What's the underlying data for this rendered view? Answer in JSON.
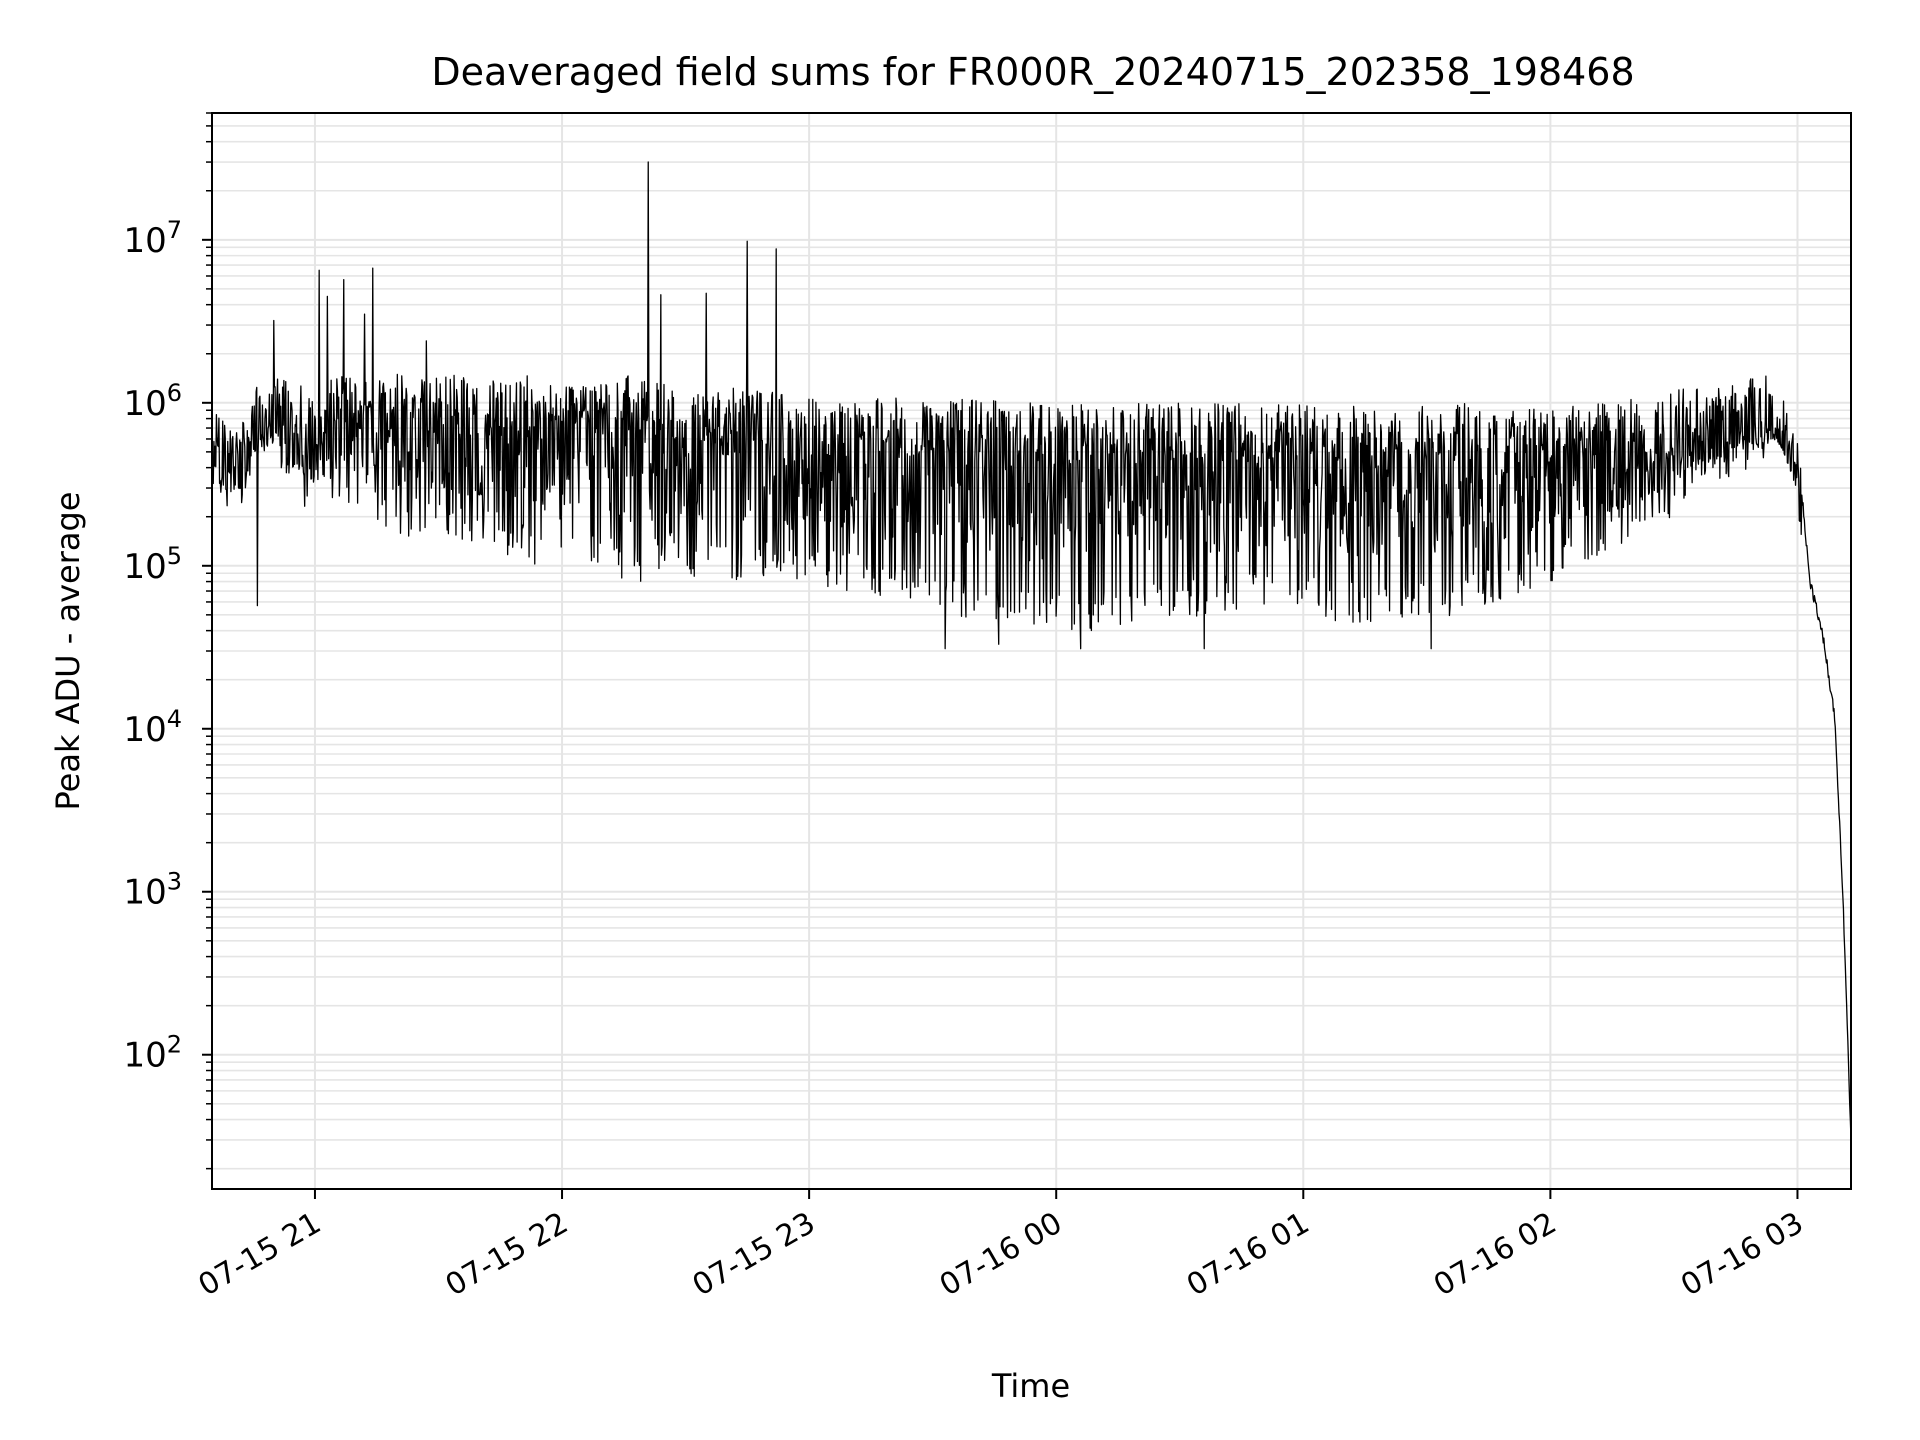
{
  "colors": {
    "background": "#ffffff",
    "series": "#000000",
    "grid": "#e5e5e5",
    "axes": "#000000"
  },
  "chart_data": {
    "type": "line",
    "title": "Deaveraged field sums for FR000R_20240715_202358_198468",
    "xlabel": "Time",
    "ylabel": "Peak ADU - average",
    "yscale": "log",
    "grid": "on (major and minor)",
    "xlim": [
      "2024-07-15 20:35",
      "2024-07-16 03:13"
    ],
    "ylim": [
      15,
      60000000
    ],
    "x_ticks": [
      {
        "t": "2024-07-15 21:00",
        "label": "07-15 21"
      },
      {
        "t": "2024-07-15 22:00",
        "label": "07-15 22"
      },
      {
        "t": "2024-07-15 23:00",
        "label": "07-15 23"
      },
      {
        "t": "2024-07-16 00:00",
        "label": "07-16 00"
      },
      {
        "t": "2024-07-16 01:00",
        "label": "07-16 01"
      },
      {
        "t": "2024-07-16 02:00",
        "label": "07-16 02"
      },
      {
        "t": "2024-07-16 03:00",
        "label": "07-16 03"
      }
    ],
    "y_ticks": [
      {
        "v": 100,
        "base": "10",
        "exp": "2"
      },
      {
        "v": 1000,
        "base": "10",
        "exp": "3"
      },
      {
        "v": 10000,
        "base": "10",
        "exp": "4"
      },
      {
        "v": 100000,
        "base": "10",
        "exp": "5"
      },
      {
        "v": 1000000,
        "base": "10",
        "exp": "6"
      },
      {
        "v": 10000000,
        "base": "10",
        "exp": "7"
      }
    ],
    "series": [
      {
        "style": "noisy line with frequent deep dips",
        "x": [
          "2024-07-15 20:35",
          "2024-07-15 20:40",
          "2024-07-15 20:45",
          "2024-07-15 20:50",
          "2024-07-15 20:55",
          "2024-07-15 21:00",
          "2024-07-15 21:05",
          "2024-07-15 21:10",
          "2024-07-15 21:15",
          "2024-07-15 21:20",
          "2024-07-15 21:25",
          "2024-07-15 21:30",
          "2024-07-15 21:35",
          "2024-07-15 21:40",
          "2024-07-15 21:45",
          "2024-07-15 21:50",
          "2024-07-15 21:55",
          "2024-07-15 22:00",
          "2024-07-15 22:05",
          "2024-07-15 22:10",
          "2024-07-15 22:15",
          "2024-07-15 22:20",
          "2024-07-15 22:25",
          "2024-07-15 22:30",
          "2024-07-15 22:35",
          "2024-07-15 22:40",
          "2024-07-15 22:45",
          "2024-07-15 22:50",
          "2024-07-15 22:55",
          "2024-07-15 23:00",
          "2024-07-15 23:10",
          "2024-07-15 23:20",
          "2024-07-15 23:30",
          "2024-07-15 23:40",
          "2024-07-15 23:50",
          "2024-07-16 00:00",
          "2024-07-16 00:10",
          "2024-07-16 00:20",
          "2024-07-16 00:30",
          "2024-07-16 00:40",
          "2024-07-16 00:50",
          "2024-07-16 01:00",
          "2024-07-16 01:10",
          "2024-07-16 01:20",
          "2024-07-16 01:30",
          "2024-07-16 01:40",
          "2024-07-16 01:50",
          "2024-07-16 02:00",
          "2024-07-16 02:10",
          "2024-07-16 02:20",
          "2024-07-16 02:30",
          "2024-07-16 02:40",
          "2024-07-16 02:50",
          "2024-07-16 02:55",
          "2024-07-16 03:00",
          "2024-07-16 03:03",
          "2024-07-16 03:06",
          "2024-07-16 03:09",
          "2024-07-16 03:11",
          "2024-07-16 03:13"
        ],
        "upper": [
          1000000,
          700000,
          1200000,
          1500000,
          1300000,
          1200000,
          1500000,
          1400000,
          1400000,
          1500000,
          1400000,
          1500000,
          1500000,
          1500000,
          1400000,
          1500000,
          1400000,
          1400000,
          1500000,
          1400000,
          1500000,
          1400000,
          1300000,
          1300000,
          1300000,
          1200000,
          1300000,
          1200000,
          1100000,
          1100000,
          1000000,
          1100000,
          1000000,
          1100000,
          1000000,
          1000000,
          1000000,
          1000000,
          1000000,
          1000000,
          1000000,
          1000000,
          1000000,
          950000,
          950000,
          1000000,
          900000,
          950000,
          1000000,
          1100000,
          1200000,
          1300000,
          1500000,
          1600000,
          550000,
          80000,
          40000,
          12000,
          1000,
          30
        ],
        "lower": [
          300000,
          150000,
          400000,
          500000,
          250000,
          200000,
          250000,
          200000,
          150000,
          150000,
          150000,
          200000,
          100000,
          150000,
          120000,
          100000,
          100000,
          120000,
          100000,
          100000,
          80000,
          80000,
          100000,
          90000,
          80000,
          80000,
          80000,
          80000,
          80000,
          75000,
          70000,
          60000,
          55000,
          45000,
          40000,
          40000,
          40000,
          45000,
          45000,
          50000,
          50000,
          50000,
          45000,
          45000,
          45000,
          50000,
          60000,
          80000,
          100000,
          150000,
          200000,
          300000,
          400000,
          500000,
          450000,
          50000,
          25000,
          8000,
          500,
          30
        ],
        "spikes": [
          {
            "t": "2024-07-15 20:50",
            "v": 3200000
          },
          {
            "t": "2024-07-15 21:01",
            "v": 6500000
          },
          {
            "t": "2024-07-15 21:03",
            "v": 4500000
          },
          {
            "t": "2024-07-15 21:07",
            "v": 5700000
          },
          {
            "t": "2024-07-15 21:12",
            "v": 3500000
          },
          {
            "t": "2024-07-15 21:14",
            "v": 6700000
          },
          {
            "t": "2024-07-15 21:27",
            "v": 2400000
          },
          {
            "t": "2024-07-15 22:21",
            "v": 30000000
          },
          {
            "t": "2024-07-15 22:24",
            "v": 4600000
          },
          {
            "t": "2024-07-15 22:35",
            "v": 4700000
          },
          {
            "t": "2024-07-15 22:45",
            "v": 9800000
          },
          {
            "t": "2024-07-15 22:52",
            "v": 8800000
          }
        ],
        "dips": [
          {
            "t": "2024-07-15 20:46",
            "v": 57000
          },
          {
            "t": "2024-07-15 23:33",
            "v": 31000
          },
          {
            "t": "2024-07-15 23:46",
            "v": 33000
          },
          {
            "t": "2024-07-16 00:06",
            "v": 31000
          },
          {
            "t": "2024-07-16 00:36",
            "v": 31000
          },
          {
            "t": "2024-07-16 01:31",
            "v": 31000
          }
        ]
      }
    ]
  }
}
